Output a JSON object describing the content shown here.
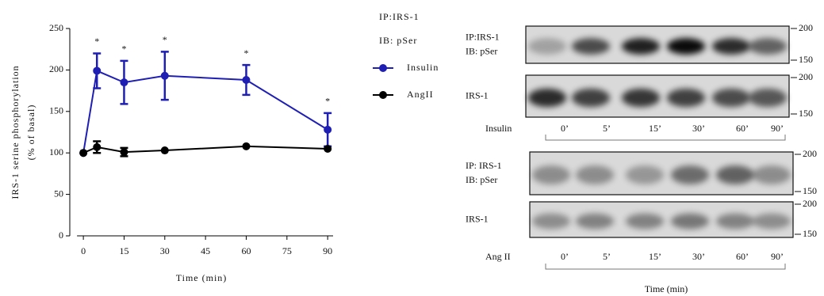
{
  "chart_data": {
    "type": "line",
    "y_label": [
      "IRS-1 serine phosphorylation",
      "(% of basal)"
    ],
    "x_label": "Time (min)",
    "legend_title": [
      "IP:IRS-1",
      "IB: pSer"
    ],
    "x": [
      0,
      5,
      15,
      30,
      60,
      90
    ],
    "series": [
      {
        "name": "Insulin",
        "color": "#1f1fb4",
        "values": [
          100,
          199,
          185,
          193,
          188,
          128
        ],
        "errors": [
          null,
          21,
          26,
          29,
          18,
          20
        ]
      },
      {
        "name": "AngII",
        "color": "#000000",
        "values": [
          100,
          107,
          101,
          103,
          108,
          105
        ],
        "errors": [
          null,
          7,
          5,
          null,
          null,
          null
        ]
      }
    ],
    "annotations": [
      {
        "x": 5,
        "text": "*"
      },
      {
        "x": 15,
        "text": "*"
      },
      {
        "x": 30,
        "text": "*"
      },
      {
        "x": 60,
        "text": "*"
      },
      {
        "x": 90,
        "text": "*"
      }
    ],
    "xlim": [
      -5,
      92
    ],
    "ylim": [
      0,
      250
    ],
    "xticks": [
      0,
      15,
      30,
      45,
      60,
      75,
      90
    ],
    "yticks": [
      0,
      50,
      100,
      150,
      200,
      250
    ]
  },
  "blots": {
    "insulin": {
      "treatment": "Insulin",
      "times": [
        "0’",
        "5’",
        "15’",
        "30’",
        "60’",
        "90’"
      ],
      "panels": [
        {
          "label": [
            "IP:IRS-1",
            "IB: pSer"
          ],
          "markers": [
            "200",
            "150"
          ]
        },
        {
          "label": [
            "IRS-1"
          ],
          "markers": [
            "200",
            "150"
          ]
        }
      ]
    },
    "angii": {
      "treatment": "Ang II",
      "times": [
        "0’",
        "5’",
        "15’",
        "30’",
        "60’",
        "90’"
      ],
      "panels": [
        {
          "label": [
            "IP: IRS-1",
            "IB: pSer"
          ],
          "markers": [
            "200",
            "150"
          ]
        },
        {
          "label": [
            "IRS-1"
          ],
          "markers": [
            "200",
            "150"
          ]
        }
      ]
    },
    "time_label": "Time (min)"
  }
}
